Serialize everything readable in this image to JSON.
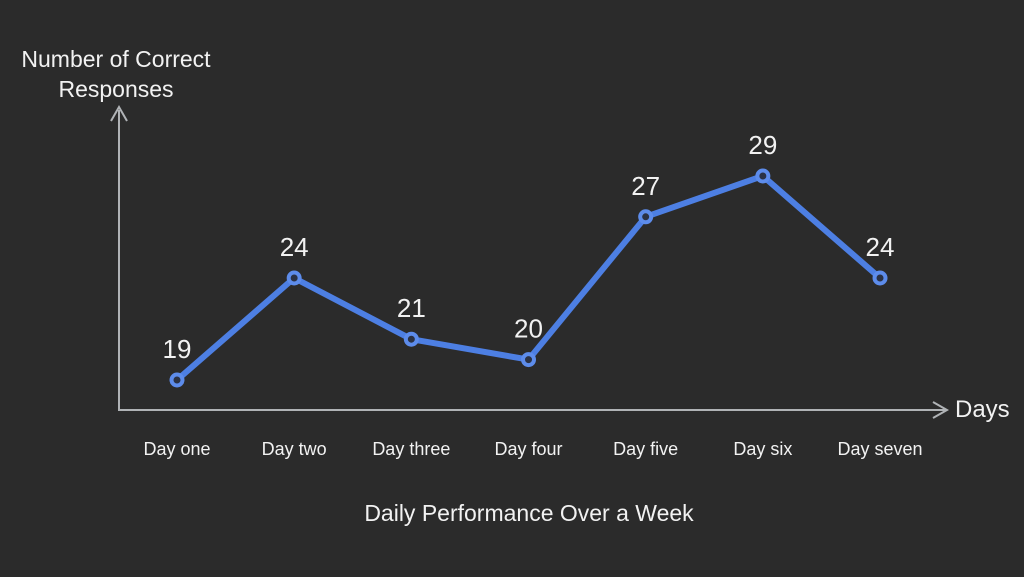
{
  "colors": {
    "background": "#2b2b2b",
    "text": "#f2f2f2",
    "axis": "#b0b3b6",
    "line": "#4d7fe3",
    "marker_stroke": "#5d8ceb",
    "marker_fill": "#2b3245"
  },
  "chart_data": {
    "type": "line",
    "title": "Daily Performance Over a Week",
    "xlabel": "Days",
    "ylabel": "Number of Correct Responses",
    "ylabel_lines": [
      "Number of Correct",
      "Responses"
    ],
    "categories": [
      "Day one",
      "Day two",
      "Day three",
      "Day four",
      "Day five",
      "Day six",
      "Day seven"
    ],
    "values": [
      19,
      24,
      21,
      20,
      27,
      29,
      24
    ],
    "data_labels_shown": true,
    "grid": false,
    "legend": "none",
    "axis_arrows": true
  }
}
